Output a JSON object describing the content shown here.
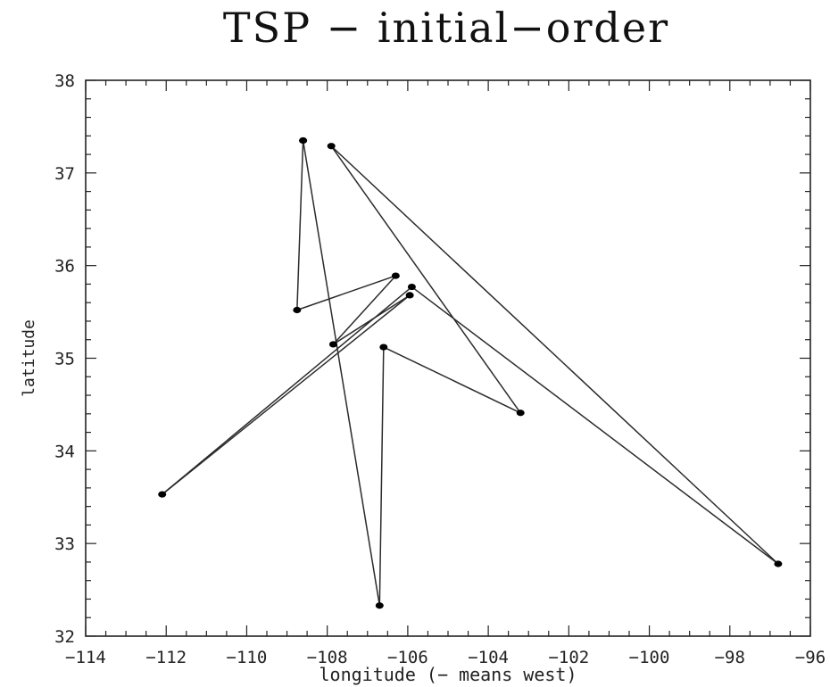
{
  "chart_data": {
    "type": "line",
    "title": "TSP − initial−order",
    "xlabel": "longitude (− means west)",
    "ylabel": "latitude",
    "xlim": [
      -114,
      -96
    ],
    "ylim": [
      32,
      38
    ],
    "x_ticks": [
      -114,
      -112,
      -110,
      -108,
      -106,
      -104,
      -102,
      -100,
      -98,
      -96
    ],
    "x_tick_labels": [
      "−114",
      "−112",
      "−110",
      "−108",
      "−106",
      "−104",
      "−102",
      "−100",
      "−98",
      "−96"
    ],
    "y_ticks": [
      32,
      33,
      34,
      35,
      36,
      37,
      38
    ],
    "y_tick_labels": [
      "32",
      "33",
      "34",
      "35",
      "36",
      "37",
      "38"
    ],
    "grid": false,
    "series": [
      {
        "points": [
          {
            "x": -108.6,
            "y": 37.35
          },
          {
            "x": -106.7,
            "y": 32.33
          },
          {
            "x": -106.6,
            "y": 35.12
          },
          {
            "x": -103.2,
            "y": 34.41
          },
          {
            "x": -107.9,
            "y": 37.29
          },
          {
            "x": -96.8,
            "y": 32.78
          },
          {
            "x": -105.9,
            "y": 35.77
          },
          {
            "x": -112.1,
            "y": 33.53
          },
          {
            "x": -105.95,
            "y": 35.68
          },
          {
            "x": -107.85,
            "y": 35.15
          },
          {
            "x": -106.3,
            "y": 35.89
          },
          {
            "x": -108.75,
            "y": 35.52
          },
          {
            "x": -108.6,
            "y": 37.35
          }
        ]
      }
    ]
  },
  "colors": {
    "line": "#2b2b2b",
    "point": "#000000",
    "axis": "#222222"
  }
}
